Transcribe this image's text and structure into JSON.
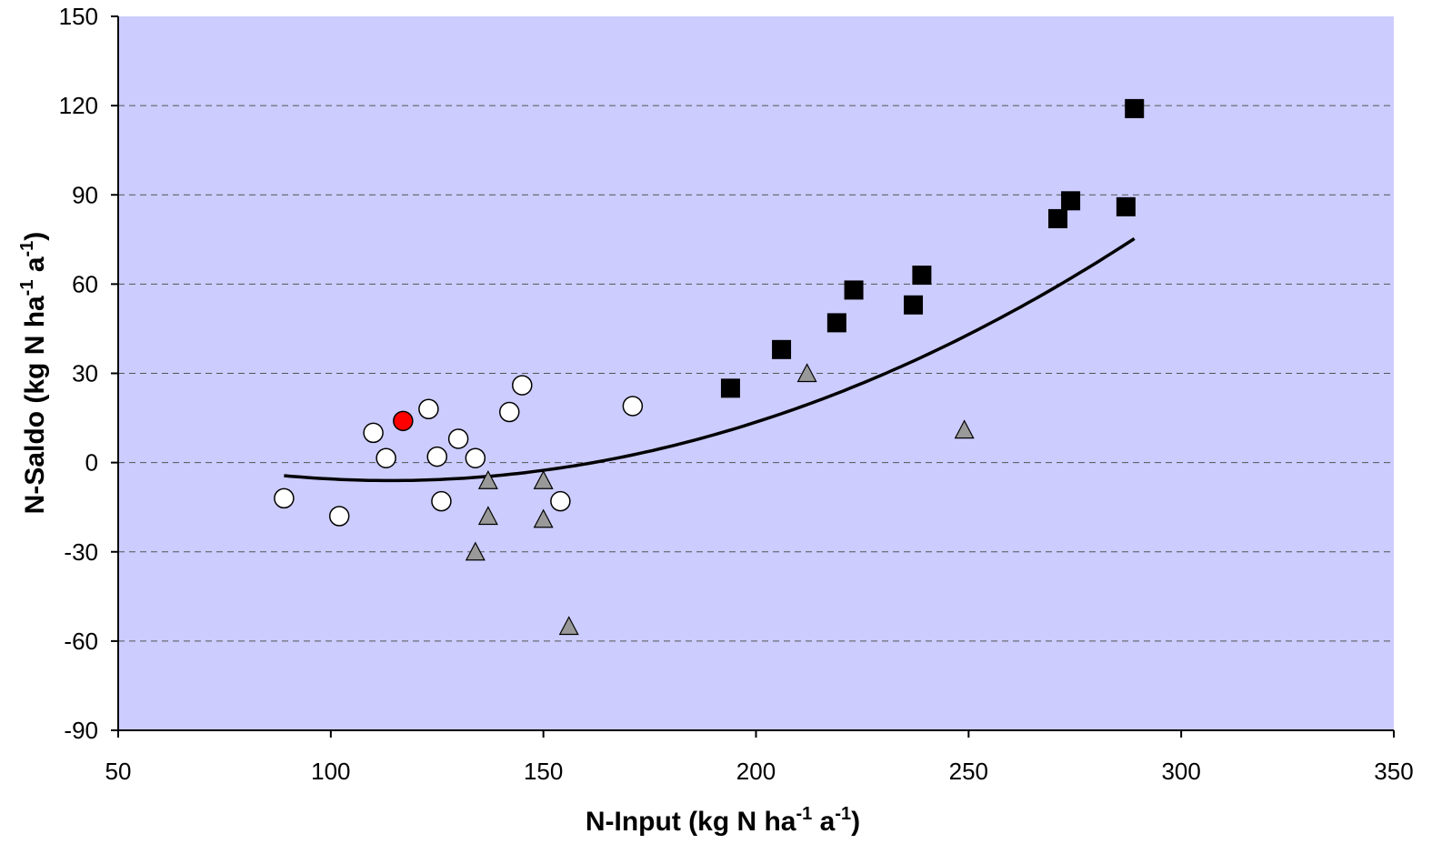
{
  "chart_data": {
    "type": "scatter",
    "xlabel": {
      "base": "N-Input (kg N ha",
      "sup1": "-1",
      "mid": " a",
      "sup2": "-1",
      "end": ")"
    },
    "ylabel": {
      "base": "N-Saldo (kg N ha",
      "sup1": "-1",
      "mid": " a",
      "sup2": "-1",
      "end": ")"
    },
    "xlim": [
      50,
      350
    ],
    "ylim": [
      -90,
      150
    ],
    "x_ticks": [
      50,
      100,
      150,
      200,
      250,
      300,
      350
    ],
    "y_ticks": [
      -90,
      -60,
      -30,
      0,
      30,
      60,
      90,
      120,
      150
    ],
    "grid": "horizontal dashed",
    "legend": "none",
    "colors": {
      "plot_background": "#ccccff",
      "gridline": "#555555",
      "circle_fill": "#ffffff",
      "highlight_fill": "#ff0000",
      "triangle_fill": "#999999",
      "square_fill": "#000000",
      "curve": "#000000"
    },
    "series": [
      {
        "marker": "circle",
        "points": [
          [
            89,
            -12
          ],
          [
            102,
            -18
          ],
          [
            110,
            10
          ],
          [
            113,
            1.5
          ],
          [
            123,
            18
          ],
          [
            125,
            2
          ],
          [
            126,
            -13
          ],
          [
            130,
            8
          ],
          [
            134,
            1.5
          ],
          [
            142,
            17
          ],
          [
            145,
            26
          ],
          [
            154,
            -13
          ],
          [
            171,
            19
          ]
        ]
      },
      {
        "marker": "circle-highlight",
        "points": [
          [
            117,
            14
          ]
        ]
      },
      {
        "marker": "triangle",
        "points": [
          [
            134,
            -30
          ],
          [
            137,
            -6
          ],
          [
            137,
            -18
          ],
          [
            150,
            -6
          ],
          [
            150,
            -19
          ],
          [
            156,
            -55
          ],
          [
            212,
            30
          ],
          [
            249,
            11
          ]
        ]
      },
      {
        "marker": "square",
        "points": [
          [
            194,
            25
          ],
          [
            206,
            38
          ],
          [
            219,
            47
          ],
          [
            223,
            58
          ],
          [
            237,
            53
          ],
          [
            239,
            63
          ],
          [
            271,
            82
          ],
          [
            274,
            88
          ],
          [
            287,
            86
          ],
          [
            289,
            119
          ]
        ]
      }
    ],
    "trendline": {
      "type": "polynomial",
      "x_range": [
        89,
        289
      ],
      "coefficients": [
        28.48,
        -0.6056,
        0.002656
      ]
    }
  }
}
